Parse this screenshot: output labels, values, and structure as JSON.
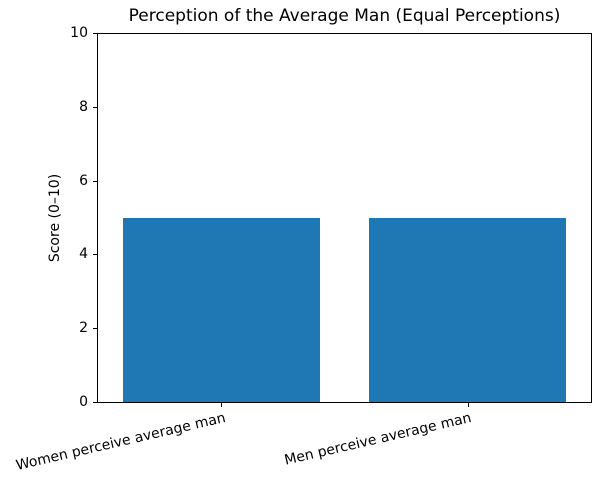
{
  "chart_data": {
    "type": "bar",
    "title": "Perception of the Average Man (Equal Perceptions)",
    "categories": [
      "Women perceive average man",
      "Men perceive average man"
    ],
    "values": [
      5,
      5
    ],
    "xlabel": "",
    "ylabel": "Score (0–10)",
    "ylim": [
      0,
      10
    ],
    "yticks": [
      0,
      2,
      4,
      6,
      8,
      10
    ],
    "bar_color": "#1f77b4",
    "grid": false,
    "legend_position": "none",
    "bar_width_fraction": 0.8
  }
}
